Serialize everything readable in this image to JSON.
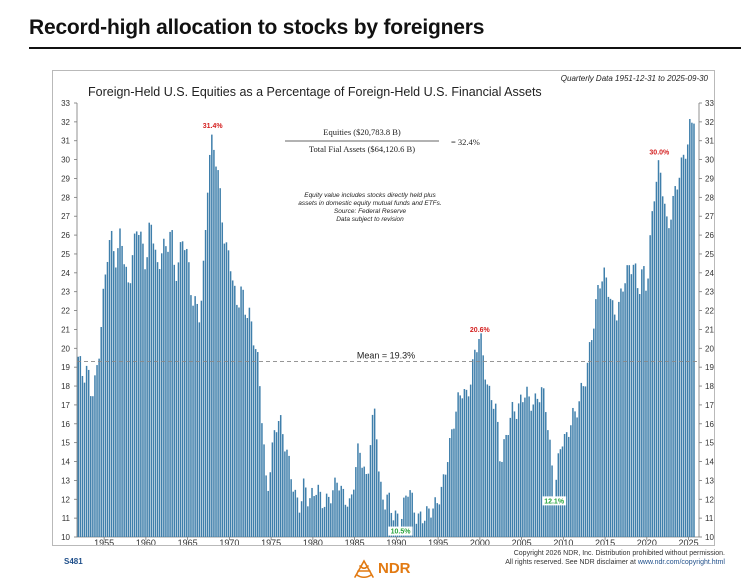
{
  "headline": "Record-high allocation to stocks by foreigners",
  "footer": {
    "chart_id": "S481",
    "copyright_line1": "Copyright 2026 NDR, Inc. Distribution prohibited without permission.",
    "copyright_line2": "All rights reserved. See NDR disclaimer at ",
    "copyright_link": "www.ndr.com/copyright.html",
    "logo_text": "NDR"
  },
  "colors": {
    "bar": "#3f7fab",
    "bar_stroke": "#2b5f86",
    "peak_label": "#d42020",
    "trough_label": "#26a33a",
    "mean_line": "#888888",
    "logo": "#e27a12"
  },
  "chart_data": {
    "type": "bar",
    "title": "Foreign-Held U.S. Equities as a Percentage of Foreign-Held U.S. Financial Assets",
    "subtitle": "Quarterly Data 1951-12-31 to 2025-09-30",
    "formula": {
      "numerator": "Equities ($20,783.8 B)",
      "denominator": "Total Fial Assets ($64,120.6 B)",
      "result": "= 32.4%"
    },
    "notes": [
      "Equity value includes stocks directly held plus",
      "assets in domestic equity mutual funds and ETFs.",
      "Source: Federal Reserve",
      "Data subject to revision"
    ],
    "mean": {
      "value": 19.3,
      "label": "Mean = 19.3%"
    },
    "annotations": [
      {
        "x": 1968.0,
        "value": 31.4,
        "label": "31.4%",
        "kind": "peak"
      },
      {
        "x": 2000.0,
        "value": 20.6,
        "label": "20.6%",
        "kind": "peak"
      },
      {
        "x": 2021.5,
        "value": 30.0,
        "label": "30.0%",
        "kind": "peak"
      },
      {
        "x": 1990.5,
        "value": 10.5,
        "label": "10.5%",
        "kind": "trough"
      },
      {
        "x": 2008.9,
        "value": 12.1,
        "label": "12.1%",
        "kind": "trough"
      }
    ],
    "xlim": [
      1951.75,
      2026.25
    ],
    "ylim": [
      10,
      33
    ],
    "x_ticks": [
      1955,
      1960,
      1965,
      1970,
      1975,
      1980,
      1985,
      1990,
      1995,
      2000,
      2005,
      2010,
      2015,
      2020,
      2025
    ],
    "y_ticks": [
      10,
      11,
      12,
      13,
      14,
      15,
      16,
      17,
      18,
      19,
      20,
      21,
      22,
      23,
      24,
      25,
      26,
      27,
      28,
      29,
      30,
      31,
      32,
      33
    ],
    "grid": false,
    "anchors": [
      [
        1951.9,
        19.3
      ],
      [
        1952.5,
        18.2
      ],
      [
        1953.0,
        19.0
      ],
      [
        1953.5,
        17.8
      ],
      [
        1954.0,
        18.6
      ],
      [
        1954.5,
        20.2
      ],
      [
        1955.0,
        23.0
      ],
      [
        1955.5,
        25.2
      ],
      [
        1956.0,
        26.0
      ],
      [
        1956.5,
        24.6
      ],
      [
        1957.0,
        26.8
      ],
      [
        1957.5,
        24.0
      ],
      [
        1958.0,
        23.0
      ],
      [
        1958.5,
        25.0
      ],
      [
        1959.0,
        26.8
      ],
      [
        1959.5,
        26.0
      ],
      [
        1960.0,
        24.5
      ],
      [
        1960.5,
        26.6
      ],
      [
        1961.0,
        25.5
      ],
      [
        1961.5,
        23.5
      ],
      [
        1962.0,
        26.0
      ],
      [
        1962.5,
        25.2
      ],
      [
        1963.0,
        27.0
      ],
      [
        1963.5,
        23.5
      ],
      [
        1964.0,
        24.5
      ],
      [
        1964.5,
        25.8
      ],
      [
        1965.0,
        25.0
      ],
      [
        1965.5,
        23.0
      ],
      [
        1966.0,
        22.5
      ],
      [
        1966.5,
        21.5
      ],
      [
        1967.0,
        24.5
      ],
      [
        1967.5,
        29.5
      ],
      [
        1968.0,
        31.4
      ],
      [
        1968.5,
        30.0
      ],
      [
        1969.0,
        28.0
      ],
      [
        1969.5,
        25.0
      ],
      [
        1970.0,
        24.8
      ],
      [
        1970.5,
        23.0
      ],
      [
        1971.0,
        22.5
      ],
      [
        1971.5,
        23.5
      ],
      [
        1972.0,
        22.0
      ],
      [
        1972.5,
        21.5
      ],
      [
        1973.0,
        20.0
      ],
      [
        1973.5,
        19.0
      ],
      [
        1974.0,
        16.0
      ],
      [
        1974.5,
        12.5
      ],
      [
        1975.0,
        14.2
      ],
      [
        1975.5,
        15.6
      ],
      [
        1976.0,
        16.0
      ],
      [
        1976.5,
        15.2
      ],
      [
        1977.0,
        14.5
      ],
      [
        1977.5,
        13.4
      ],
      [
        1978.0,
        12.0
      ],
      [
        1978.5,
        11.4
      ],
      [
        1979.0,
        12.6
      ],
      [
        1979.5,
        11.8
      ],
      [
        1980.0,
        12.5
      ],
      [
        1980.5,
        13.0
      ],
      [
        1981.0,
        12.0
      ],
      [
        1981.5,
        11.5
      ],
      [
        1982.0,
        11.8
      ],
      [
        1982.5,
        12.5
      ],
      [
        1983.0,
        13.4
      ],
      [
        1983.5,
        12.6
      ],
      [
        1984.0,
        12.0
      ],
      [
        1984.5,
        11.3
      ],
      [
        1985.0,
        13.0
      ],
      [
        1985.5,
        14.8
      ],
      [
        1986.0,
        14.2
      ],
      [
        1986.5,
        13.0
      ],
      [
        1987.0,
        15.8
      ],
      [
        1987.5,
        16.5
      ],
      [
        1988.0,
        12.5
      ],
      [
        1988.5,
        11.8
      ],
      [
        1989.0,
        12.5
      ],
      [
        1989.5,
        11.6
      ],
      [
        1990.0,
        11.0
      ],
      [
        1990.5,
        10.5
      ],
      [
        1991.0,
        11.6
      ],
      [
        1991.5,
        12.8
      ],
      [
        1992.0,
        12.0
      ],
      [
        1992.5,
        11.2
      ],
      [
        1993.0,
        11.0
      ],
      [
        1993.5,
        10.8
      ],
      [
        1994.0,
        11.2
      ],
      [
        1994.5,
        11.6
      ],
      [
        1995.0,
        12.3
      ],
      [
        1995.5,
        12.8
      ],
      [
        1996.0,
        13.8
      ],
      [
        1996.5,
        14.8
      ],
      [
        1997.0,
        16.2
      ],
      [
        1997.5,
        17.5
      ],
      [
        1998.0,
        18.2
      ],
      [
        1998.5,
        17.5
      ],
      [
        1999.0,
        18.6
      ],
      [
        1999.5,
        19.6
      ],
      [
        2000.0,
        20.6
      ],
      [
        2000.5,
        19.4
      ],
      [
        2001.0,
        18.0
      ],
      [
        2001.5,
        17.6
      ],
      [
        2002.0,
        16.5
      ],
      [
        2002.5,
        13.5
      ],
      [
        2003.0,
        14.8
      ],
      [
        2003.5,
        16.2
      ],
      [
        2004.0,
        17.2
      ],
      [
        2004.5,
        16.8
      ],
      [
        2005.0,
        17.2
      ],
      [
        2005.5,
        17.4
      ],
      [
        2006.0,
        17.0
      ],
      [
        2006.5,
        17.2
      ],
      [
        2007.0,
        17.8
      ],
      [
        2007.5,
        18.0
      ],
      [
        2008.0,
        16.5
      ],
      [
        2008.5,
        14.0
      ],
      [
        2008.9,
        12.1
      ],
      [
        2009.5,
        14.5
      ],
      [
        2010.0,
        15.8
      ],
      [
        2010.5,
        15.2
      ],
      [
        2011.0,
        16.4
      ],
      [
        2011.5,
        16.0
      ],
      [
        2012.0,
        17.5
      ],
      [
        2012.5,
        18.2
      ],
      [
        2013.0,
        19.8
      ],
      [
        2013.5,
        21.0
      ],
      [
        2014.0,
        22.5
      ],
      [
        2014.5,
        23.4
      ],
      [
        2015.0,
        23.8
      ],
      [
        2015.5,
        23.2
      ],
      [
        2016.0,
        22.2
      ],
      [
        2016.5,
        22.0
      ],
      [
        2017.0,
        22.8
      ],
      [
        2017.5,
        23.6
      ],
      [
        2018.0,
        24.2
      ],
      [
        2018.5,
        24.8
      ],
      [
        2019.0,
        23.2
      ],
      [
        2019.5,
        24.4
      ],
      [
        2020.0,
        22.8
      ],
      [
        2020.5,
        26.0
      ],
      [
        2021.0,
        28.6
      ],
      [
        2021.5,
        30.0
      ],
      [
        2022.0,
        28.5
      ],
      [
        2022.5,
        26.2
      ],
      [
        2023.0,
        27.2
      ],
      [
        2023.5,
        28.2
      ],
      [
        2024.0,
        29.4
      ],
      [
        2024.5,
        30.6
      ],
      [
        2025.0,
        31.2
      ],
      [
        2025.25,
        32.4
      ],
      [
        2025.5,
        32.0
      ],
      [
        2025.75,
        32.4
      ]
    ]
  }
}
